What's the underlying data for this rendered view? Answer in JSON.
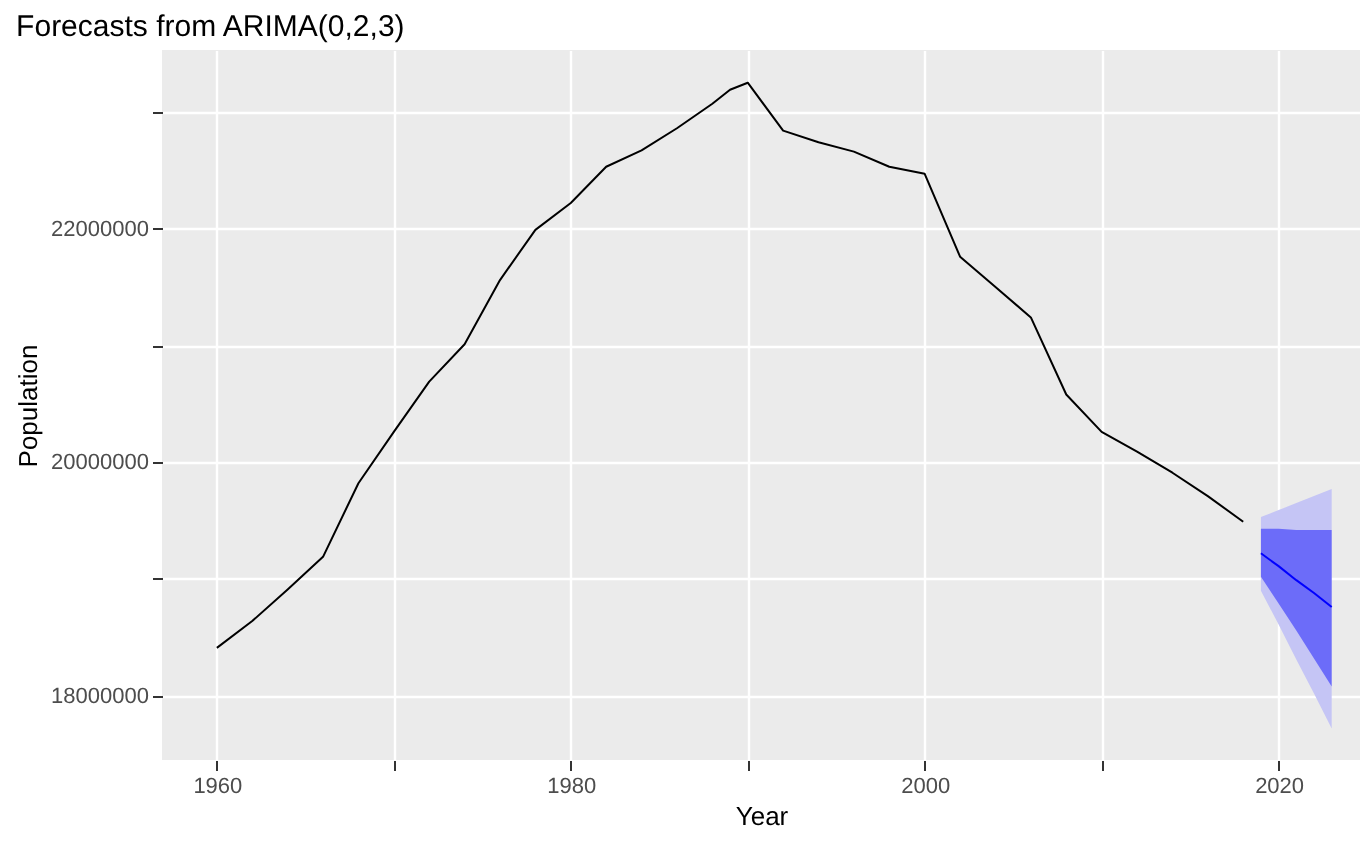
{
  "chart_data": {
    "type": "line",
    "title": "Forecasts from ARIMA(0,2,3)",
    "xlabel": "Year",
    "ylabel": "Population",
    "xlim": [
      1956.9,
      2024.6
    ],
    "xticks": [
      1960,
      {
        "value": 1970,
        "label": null
      },
      1980,
      {
        "value": 1990,
        "label": null
      },
      2000,
      {
        "value": 2010,
        "label": null
      },
      2020
    ],
    "ylim": [
      17450000,
      23530000
    ],
    "yticks": [
      18000000,
      {
        "value": 19000000,
        "label": null
      },
      20000000,
      {
        "value": 21000000,
        "label": null
      },
      22000000,
      {
        "value": 23000000,
        "label": null
      }
    ],
    "grid": true,
    "line_style": "solid",
    "marker": "none",
    "series": [
      {
        "color": "#000000",
        "x": [
          1960,
          1962,
          1964,
          1966,
          1968,
          1970,
          1972,
          1974,
          1976,
          1978,
          1980,
          1982,
          1984,
          1986,
          1988,
          1989,
          1990,
          1992,
          1994,
          1996,
          1998,
          2000,
          2002,
          2004,
          2006,
          2008,
          2010,
          2012,
          2014,
          2016,
          2018
        ],
        "values": [
          18410000,
          18640000,
          18910000,
          19190000,
          19820000,
          20260000,
          20690000,
          21010000,
          21560000,
          21990000,
          22220000,
          22530000,
          22670000,
          22860000,
          23070000,
          23190000,
          23250000,
          22840000,
          22740000,
          22660000,
          22530000,
          22470000,
          21760000,
          21500000,
          21240000,
          20580000,
          20260000,
          20090000,
          19910000,
          19710000,
          19490000
        ]
      },
      {
        "color": "#c5c5f5",
        "x": [
          2019,
          2020,
          2021,
          2022,
          2023
        ],
        "values": [
          null,
          null,
          null,
          null,
          null
        ],
        "lower": [
          18900000,
          18610000,
          18310000,
          18020000,
          17720000
        ],
        "upper": [
          19530000,
          19590000,
          19650000,
          19710000,
          19770000
        ]
      },
      {
        "color": "#0000ff",
        "x": [
          2019,
          2020,
          2021,
          2022,
          2023
        ],
        "values": [
          19220000,
          19110000,
          18990000,
          18880000,
          18760000
        ],
        "lower": [
          19020000,
          18790000,
          18560000,
          18320000,
          18080000
        ],
        "upper": [
          19430000,
          19430000,
          19420000,
          19420000,
          19420000
        ]
      }
    ]
  }
}
